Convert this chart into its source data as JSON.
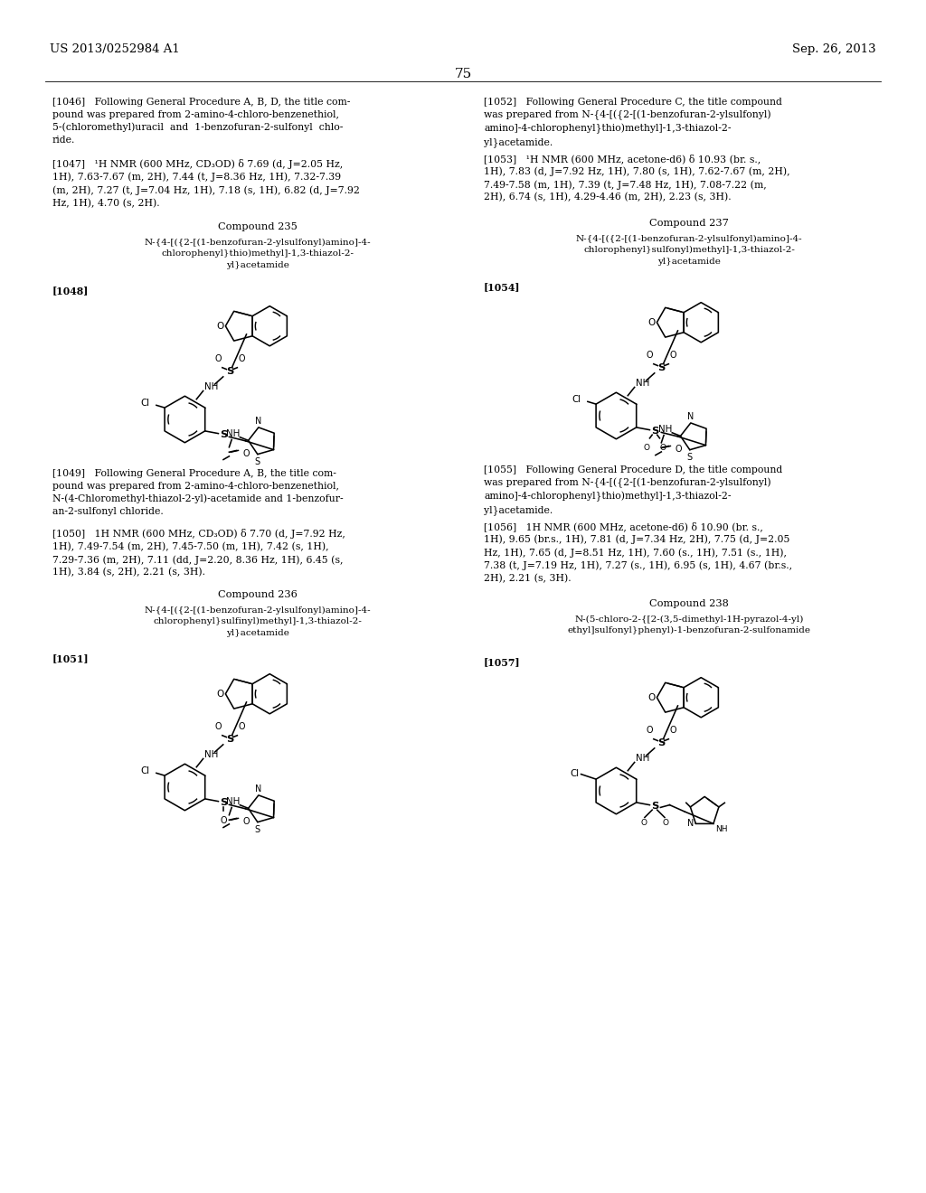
{
  "background_color": "#ffffff",
  "page_header_left": "US 2013/0252984 A1",
  "page_header_right": "Sep. 26, 2013",
  "page_number": "75",
  "figsize": [
    10.24,
    13.2
  ],
  "dpi": 100,
  "left_col": {
    "para_1046": "[1046]   Following General Procedure A, B, D, the title com-\npound was prepared from 2-amino-4-chloro-benzenethiol,\n5-(chloromethyl)uracil  and  1-benzofuran-2-sulfonyl  chlo-\nride.",
    "para_1047": "[1047]   ¹H NMR (600 MHz, CD₃OD) δ 7.69 (d, J=2.05 Hz,\n1H), 7.63-7.67 (m, 2H), 7.44 (t, J=8.36 Hz, 1H), 7.32-7.39\n(m, 2H), 7.27 (t, J=7.04 Hz, 1H), 7.18 (s, 1H), 6.82 (d, J=7.92\nHz, 1H), 4.70 (s, 2H).",
    "compound_235_title": "Compound 235",
    "compound_235_name": "N-{4-[({2-[(1-benzofuran-2-ylsulfonyl)amino]-4-\nchlorophenyl}thio)methyl]-1,3-thiazol-2-\nyl}acetamide",
    "para_1048": "[1048]",
    "para_1049": "[1049]   Following General Procedure A, B, the title com-\npound was prepared from 2-amino-4-chloro-benzenethiol,\nN-(4-Chloromethyl-thiazol-2-yl)-acetamide and 1-benzofur-\nan-2-sulfonyl chloride.",
    "para_1050": "[1050]   1H NMR (600 MHz, CD₃OD) δ 7.70 (d, J=7.92 Hz,\n1H), 7.49-7.54 (m, 2H), 7.45-7.50 (m, 1H), 7.42 (s, 1H),\n7.29-7.36 (m, 2H), 7.11 (dd, J=2.20, 8.36 Hz, 1H), 6.45 (s,\n1H), 3.84 (s, 2H), 2.21 (s, 3H).",
    "compound_236_title": "Compound 236",
    "compound_236_name": "N-{4-[({2-[(1-benzofuran-2-ylsulfonyl)amino]-4-\nchlorophenyl}sulfinyl)methyl]-1,3-thiazol-2-\nyl}acetamide",
    "para_1051": "[1051]"
  },
  "right_col": {
    "para_1052": "[1052]   Following General Procedure C, the title compound\nwas prepared from N-{4-[({2-[(1-benzofuran-2-ylsulfonyl)\namino]-4-chlorophenyl}thio)methyl]-1,3-thiazol-2-\nyl}acetamide.",
    "para_1053": "[1053]   ¹H NMR (600 MHz, acetone-d6) δ 10.93 (br. s.,\n1H), 7.83 (d, J=7.92 Hz, 1H), 7.80 (s, 1H), 7.62-7.67 (m, 2H),\n7.49-7.58 (m, 1H), 7.39 (t, J=7.48 Hz, 1H), 7.08-7.22 (m,\n2H), 6.74 (s, 1H), 4.29-4.46 (m, 2H), 2.23 (s, 3H).",
    "compound_237_title": "Compound 237",
    "compound_237_name": "N-{4-[({2-[(1-benzofuran-2-ylsulfonyl)amino]-4-\nchlorophenyl}sulfonyl)methyl]-1,3-thiazol-2-\nyl}acetamide",
    "para_1054": "[1054]",
    "para_1055": "[1055]   Following General Procedure D, the title compound\nwas prepared from N-{4-[({2-[(1-benzofuran-2-ylsulfonyl)\namino]-4-chlorophenyl}thio)methyl]-1,3-thiazol-2-\nyl}acetamide.",
    "para_1056": "[1056]   1H NMR (600 MHz, acetone-d6) δ 10.90 (br. s.,\n1H), 9.65 (br.s., 1H), 7.81 (d, J=7.34 Hz, 2H), 7.75 (d, J=2.05\nHz, 1H), 7.65 (d, J=8.51 Hz, 1H), 7.60 (s., 1H), 7.51 (s., 1H),\n7.38 (t, J=7.19 Hz, 1H), 7.27 (s., 1H), 6.95 (s, 1H), 4.67 (br.s.,\n2H), 2.21 (s, 3H).",
    "compound_238_title": "Compound 238",
    "compound_238_name": "N-(5-chloro-2-{[2-(3,5-dimethyl-1H-pyrazol-4-yl)\nethyl]sulfonyl}phenyl)-1-benzofuran-2-sulfonamide",
    "para_1057": "[1057]"
  }
}
